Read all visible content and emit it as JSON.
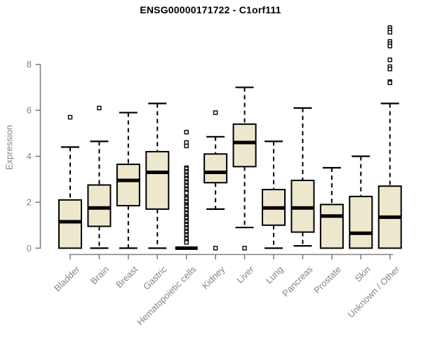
{
  "chart_data": {
    "type": "boxplot",
    "title": "ENSG00000171722 - C1orf111",
    "ylabel": "Expression",
    "xlabel": "",
    "yticks": [
      0,
      2,
      4,
      6,
      8
    ],
    "ylim": [
      0,
      9.8
    ],
    "grid": false,
    "legend": "none",
    "colors": {
      "box_fill": "#EDE8CD",
      "box_border": "#000000",
      "median": "#000000",
      "whisker": "#000000",
      "outlier_fill": "#ffffff",
      "axis": "#808080",
      "tick_text": "#848484",
      "title_text": "#000000",
      "background": "#ffffff"
    },
    "categories": [
      "Bladder",
      "Brain",
      "Breast",
      "Gastric",
      "Hematopoietic cells",
      "Kidney",
      "Liver",
      "Lung",
      "Pancreas",
      "Prostate",
      "Skin",
      "Unknown / Other"
    ],
    "series": [
      {
        "category": "Bladder",
        "whisker_low": 0,
        "q1": 0,
        "median": 1.15,
        "q3": 2.1,
        "whisker_high": 4.4,
        "outliers": [
          5.7
        ]
      },
      {
        "category": "Brain",
        "whisker_low": 0,
        "q1": 0.95,
        "median": 1.75,
        "q3": 2.75,
        "whisker_high": 4.65,
        "outliers": [
          6.1
        ]
      },
      {
        "category": "Breast",
        "whisker_low": 0,
        "q1": 1.85,
        "median": 2.95,
        "q3": 3.65,
        "whisker_high": 5.9,
        "outliers": []
      },
      {
        "category": "Gastric",
        "whisker_low": 0,
        "q1": 1.7,
        "median": 3.3,
        "q3": 4.2,
        "whisker_high": 6.3,
        "outliers": []
      },
      {
        "category": "Hematopoietic cells",
        "whisker_low": 0,
        "q1": 0,
        "median": 0,
        "q3": 0,
        "whisker_high": 0,
        "outliers": [
          5.05,
          4.6,
          4.45,
          3.5,
          3.45,
          3.35,
          3.3,
          3.2,
          3.15,
          3.05,
          3.0,
          2.9,
          2.85,
          2.75,
          2.7,
          2.6,
          2.55,
          2.45,
          2.4,
          2.2,
          2.15,
          2.05,
          2.0,
          1.9,
          1.85,
          1.8,
          1.7,
          1.65,
          1.55,
          1.5,
          1.4,
          1.35,
          1.3,
          1.2,
          1.15,
          1.05,
          1.0,
          0.9,
          0.85,
          0.75,
          0.7,
          0.6,
          0.55,
          0.45,
          0.4,
          0.3,
          0.25
        ]
      },
      {
        "category": "Kidney",
        "whisker_low": 1.7,
        "q1": 2.85,
        "median": 3.3,
        "q3": 4.1,
        "whisker_high": 4.85,
        "outliers": [
          5.9,
          0
        ]
      },
      {
        "category": "Liver",
        "whisker_low": 0.9,
        "q1": 3.55,
        "median": 4.6,
        "q3": 5.4,
        "whisker_high": 7.0,
        "outliers": [
          0
        ]
      },
      {
        "category": "Lung",
        "whisker_low": 0,
        "q1": 1.0,
        "median": 1.75,
        "q3": 2.55,
        "whisker_high": 4.65,
        "outliers": []
      },
      {
        "category": "Pancreas",
        "whisker_low": 0.1,
        "q1": 0.7,
        "median": 1.75,
        "q3": 2.95,
        "whisker_high": 6.1,
        "outliers": []
      },
      {
        "category": "Prostate",
        "whisker_low": 0,
        "q1": 0,
        "median": 1.4,
        "q3": 1.9,
        "whisker_high": 3.5,
        "outliers": []
      },
      {
        "category": "Skin",
        "whisker_low": 0,
        "q1": 0,
        "median": 0.65,
        "q3": 2.25,
        "whisker_high": 4.0,
        "outliers": []
      },
      {
        "category": "Unknown / Other",
        "whisker_low": 0,
        "q1": 0,
        "median": 1.35,
        "q3": 2.7,
        "whisker_high": 6.3,
        "outliers": [
          9.6,
          9.5,
          9.4,
          9.0,
          8.9,
          8.8,
          8.2,
          7.9,
          7.8,
          7.25,
          7.2
        ]
      }
    ]
  }
}
